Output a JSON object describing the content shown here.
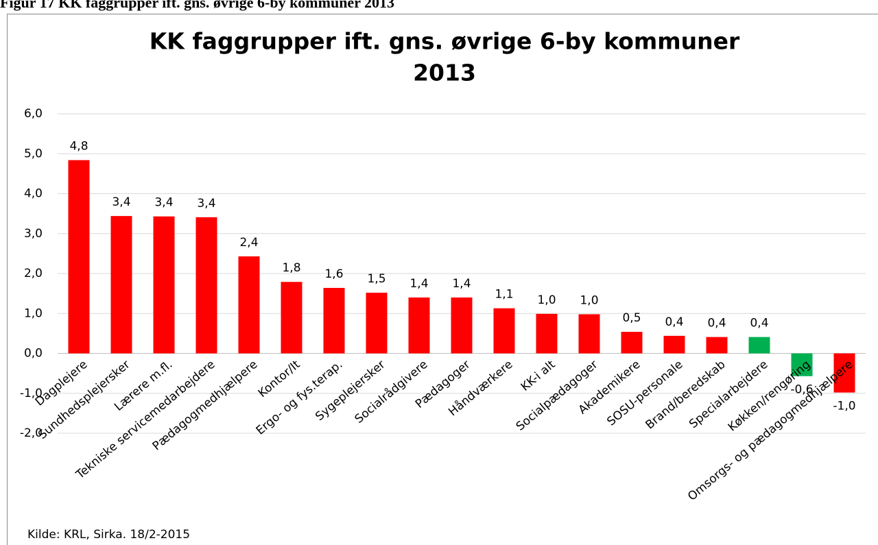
{
  "header": "Figur 17       KK faggrupper ift. gns. øvrige 6-by kommuner 2013",
  "chart_data": {
    "type": "bar",
    "title": [
      "KK faggrupper ift. gns. øvrige 6-by kommuner",
      "2013"
    ],
    "categories": [
      "Dagplejere",
      "Sundhedsplejersker",
      "Lærere m.fl.",
      "Tekniske servicemedarbejdere",
      "Pædagogmedhjælpere",
      "Kontor/It",
      "Ergo- og fys.terap.",
      "Sygeplejersker",
      "Socialrådgivere",
      "Pædagoger",
      "Håndværkere",
      "KK-i alt",
      "Socialpædagoger",
      "Akademikere",
      "SOSU-personale",
      "Brand/beredskab",
      "Specialarbejdere",
      "Køkken/rengøring",
      "Omsorgs- og pædagogmedhjælpere"
    ],
    "values": [
      4.84,
      3.44,
      3.43,
      3.41,
      2.43,
      1.79,
      1.64,
      1.52,
      1.4,
      1.4,
      1.13,
      0.99,
      0.98,
      0.54,
      0.44,
      0.41,
      0.41,
      -0.57,
      -0.98
    ],
    "value_labels": [
      "4,8",
      "3,4",
      "3,4",
      "3,4",
      "2,4",
      "1,8",
      "1,6",
      "1,5",
      "1,4",
      "1,4",
      "1,1",
      "1,0",
      "1,0",
      "0,5",
      "0,4",
      "0,4",
      "0,4",
      "-0,6",
      "-1,0"
    ],
    "colors": [
      "#ff0000",
      "#ff0000",
      "#ff0000",
      "#ff0000",
      "#ff0000",
      "#ff0000",
      "#ff0000",
      "#ff0000",
      "#ff0000",
      "#ff0000",
      "#ff0000",
      "#ff0000",
      "#ff0000",
      "#ff0000",
      "#ff0000",
      "#ff0000",
      "#00b050",
      "#00b050",
      "#ff0000"
    ],
    "ylim": [
      -2,
      6
    ],
    "yticks": [
      {
        "value": -2,
        "label": "-2,0"
      },
      {
        "value": -1,
        "label": "-1,0"
      },
      {
        "value": 0,
        "label": "0,0"
      },
      {
        "value": 1,
        "label": "1,0"
      },
      {
        "value": 2,
        "label": "2,0"
      },
      {
        "value": 3,
        "label": "3,0"
      },
      {
        "value": 4,
        "label": "4,0"
      },
      {
        "value": 5,
        "label": "5,0"
      },
      {
        "value": 6,
        "label": "6,0"
      }
    ],
    "grid": true,
    "source": "Kilde: KRL, Sirka. 18/2-2015"
  }
}
